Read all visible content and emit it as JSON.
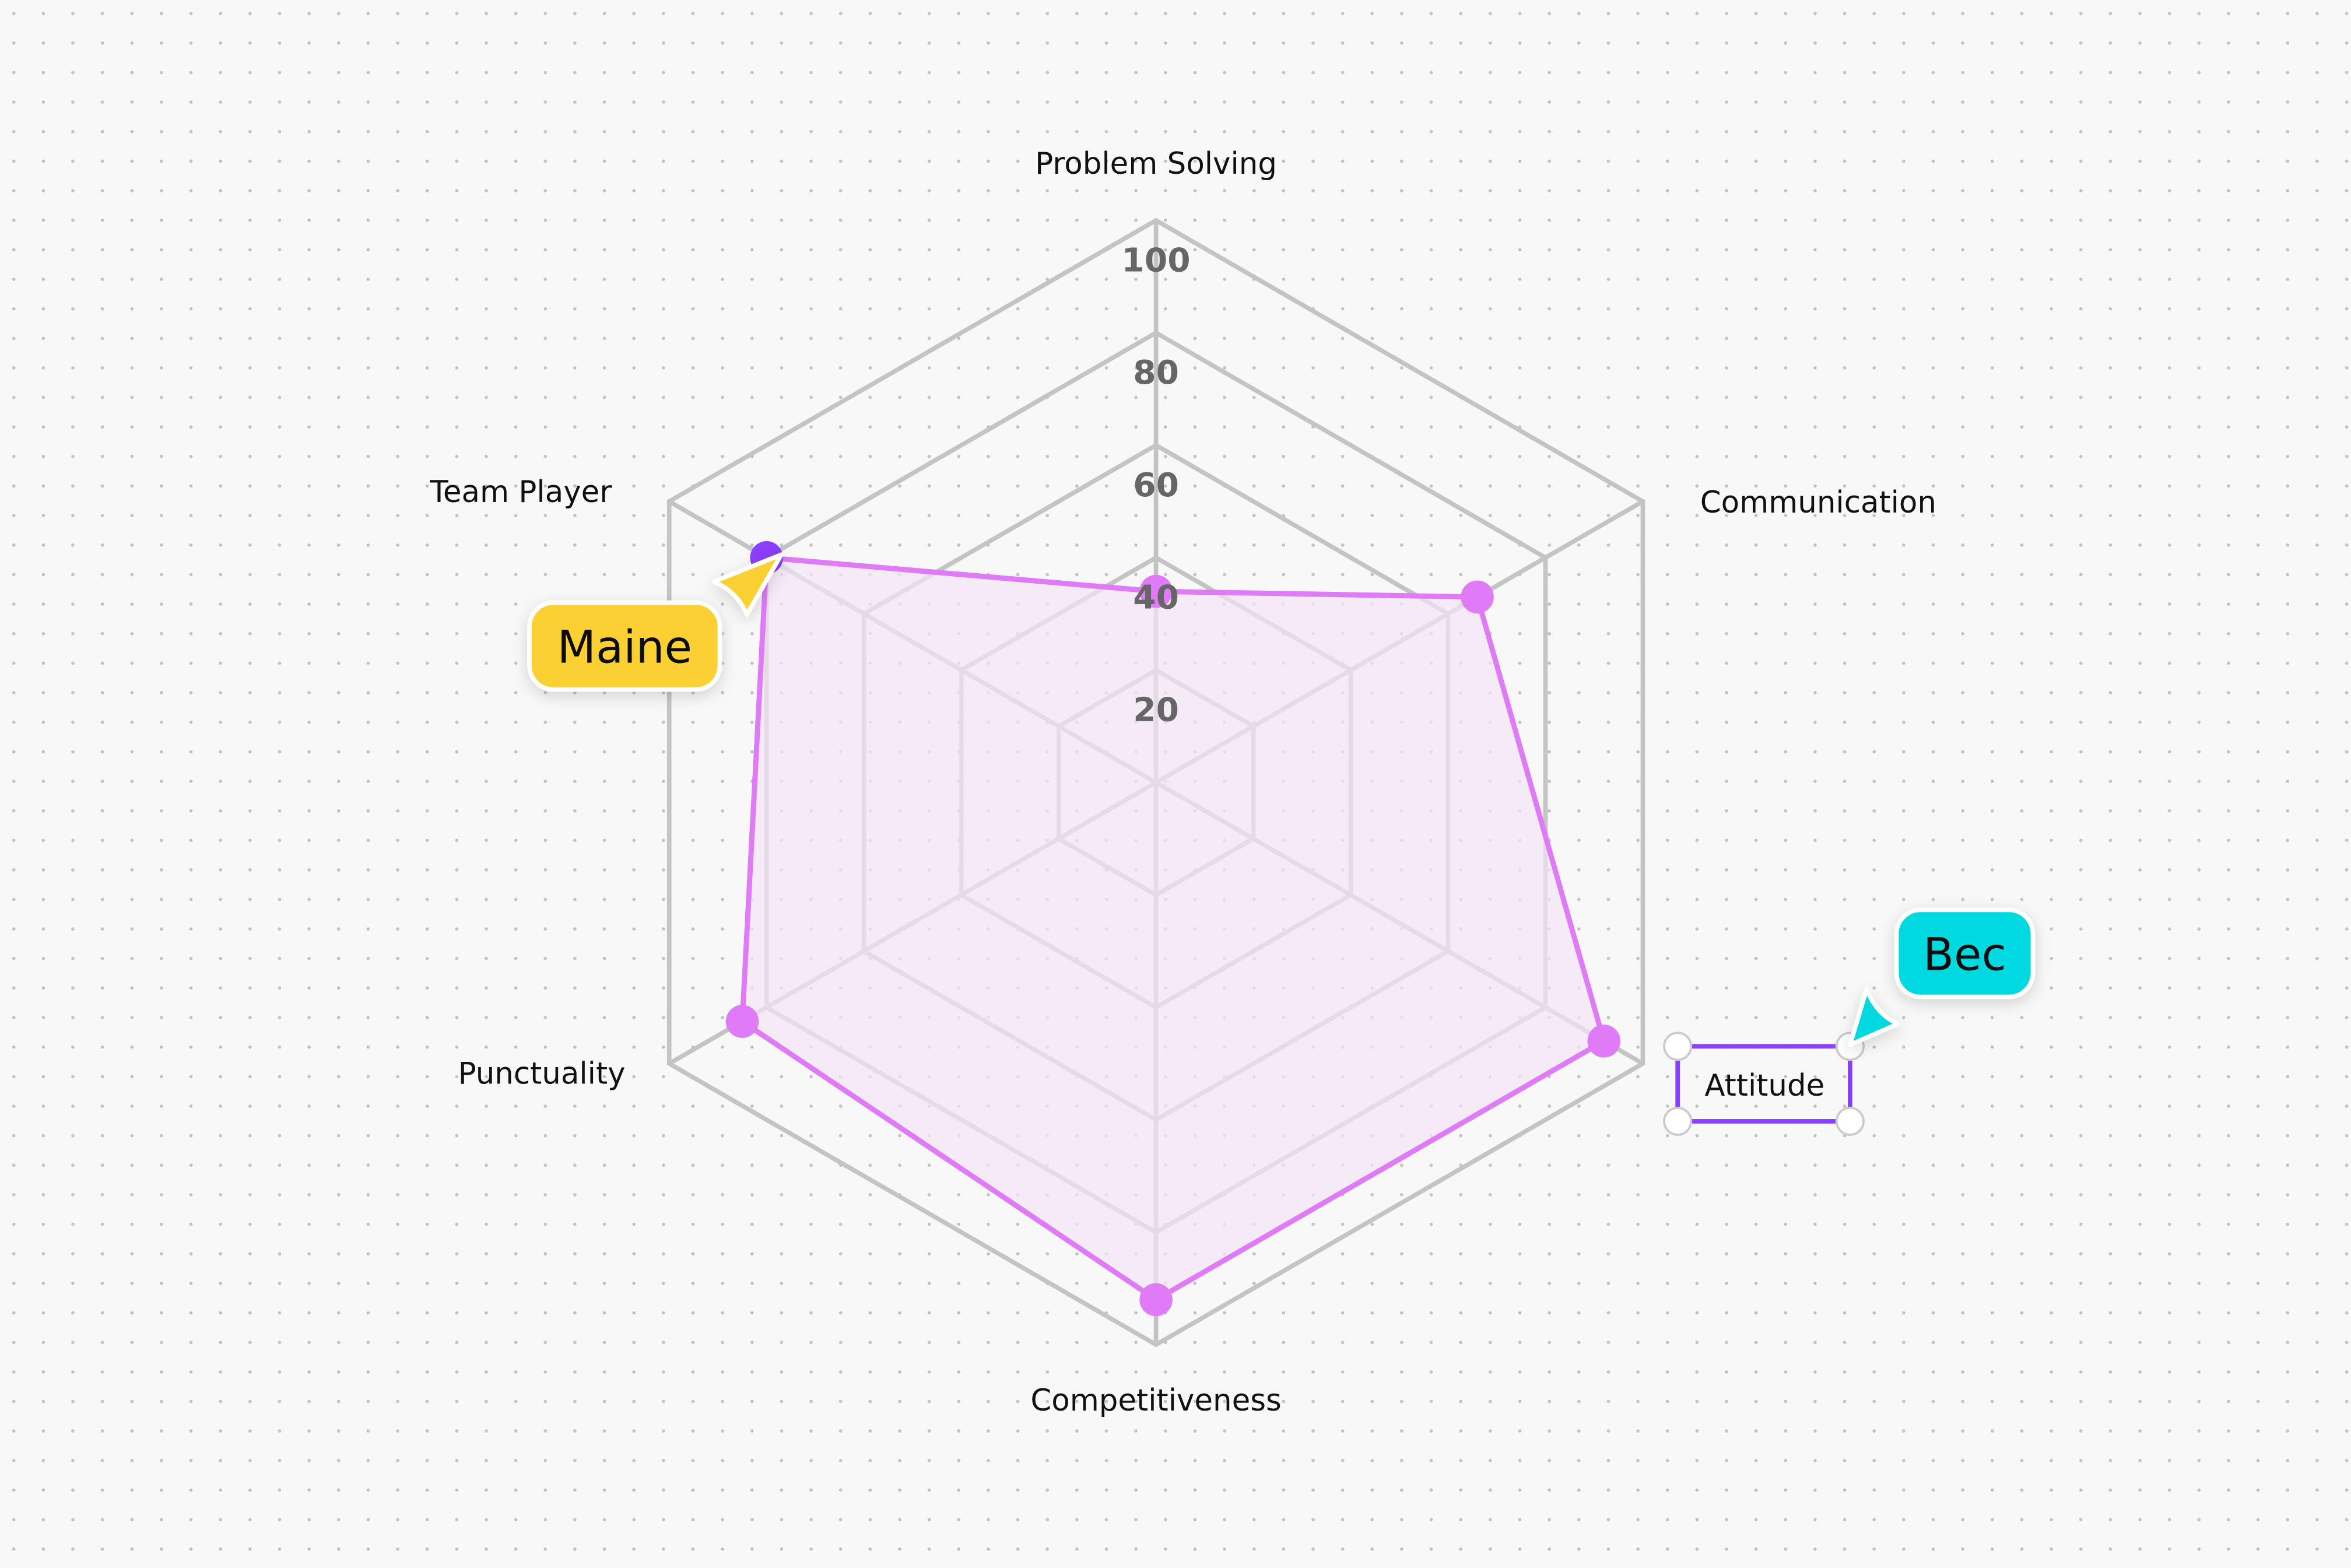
{
  "chart_data": {
    "type": "radar",
    "axes": [
      "Problem Solving",
      "Communication",
      "Attitude",
      "Competitiveness",
      "Punctuality",
      "Team Player"
    ],
    "values": [
      34,
      66,
      92,
      92,
      85,
      80
    ],
    "rlim": [
      0,
      100
    ],
    "ticks": [
      20,
      40,
      60,
      80,
      100
    ],
    "tick_labels": [
      "20",
      "40",
      "60",
      "80",
      "100"
    ],
    "grid": true,
    "colors": {
      "line": "#e07bf7",
      "fill": "#f3e6f6",
      "grid": "#c4c4c4",
      "highlight_point": "#8a3ffc"
    }
  },
  "selection": {
    "label": "Attitude",
    "border_color": "#8a3ffc"
  },
  "cursors": [
    {
      "name": "Maine",
      "color": "#fbd030"
    },
    {
      "name": "Bec",
      "color": "#00d9e0"
    }
  ]
}
